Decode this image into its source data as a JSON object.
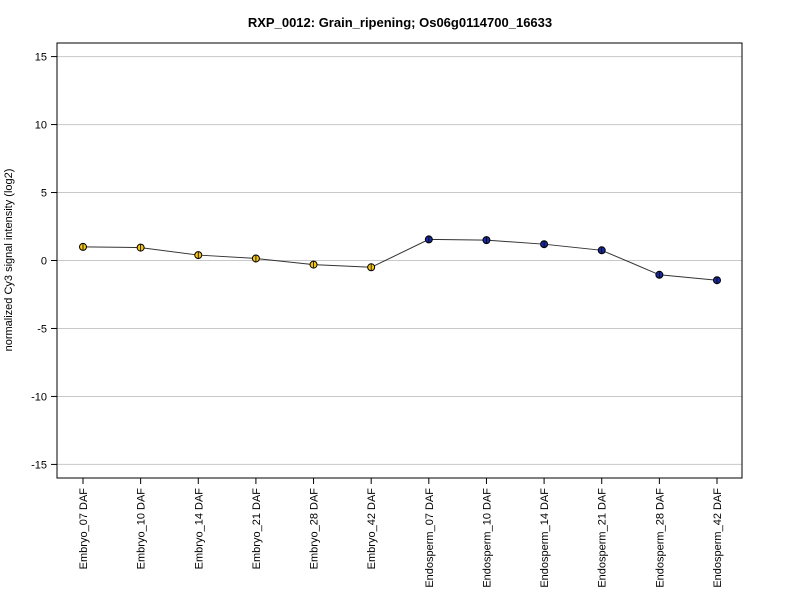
{
  "chart_data": {
    "type": "line",
    "title": "RXP_0012: Grain_ripening; Os06g0114700_16633",
    "xlabel": "",
    "ylabel": "normalized Cy3 signal intensity (log2)",
    "ylim": [
      -16,
      16
    ],
    "yticks": [
      -15,
      -10,
      -5,
      0,
      5,
      10,
      15
    ],
    "grid": "horizontal",
    "categories": [
      "Embryo_07 DAF",
      "Embryo_10 DAF",
      "Embryo_14 DAF",
      "Embryo_21 DAF",
      "Embryo_28 DAF",
      "Embryo_42 DAF",
      "Endosperm_07 DAF",
      "Endosperm_10 DAF",
      "Endosperm_14 DAF",
      "Endosperm_21 DAF",
      "Endosperm_28 DAF",
      "Endosperm_42 DAF"
    ],
    "values": [
      1.0,
      0.95,
      0.4,
      0.15,
      -0.3,
      -0.5,
      1.55,
      1.5,
      1.2,
      0.75,
      -1.05,
      -1.45
    ],
    "point_colors": [
      "#f5c518",
      "#f5c518",
      "#f5c518",
      "#f5c518",
      "#f5c518",
      "#f5c518",
      "#1a2a9e",
      "#1a2a9e",
      "#1a2a9e",
      "#1a2a9e",
      "#1a2a9e",
      "#1a2a9e"
    ],
    "line_color": "#333333",
    "gridline_color": "#c8c8c8"
  }
}
